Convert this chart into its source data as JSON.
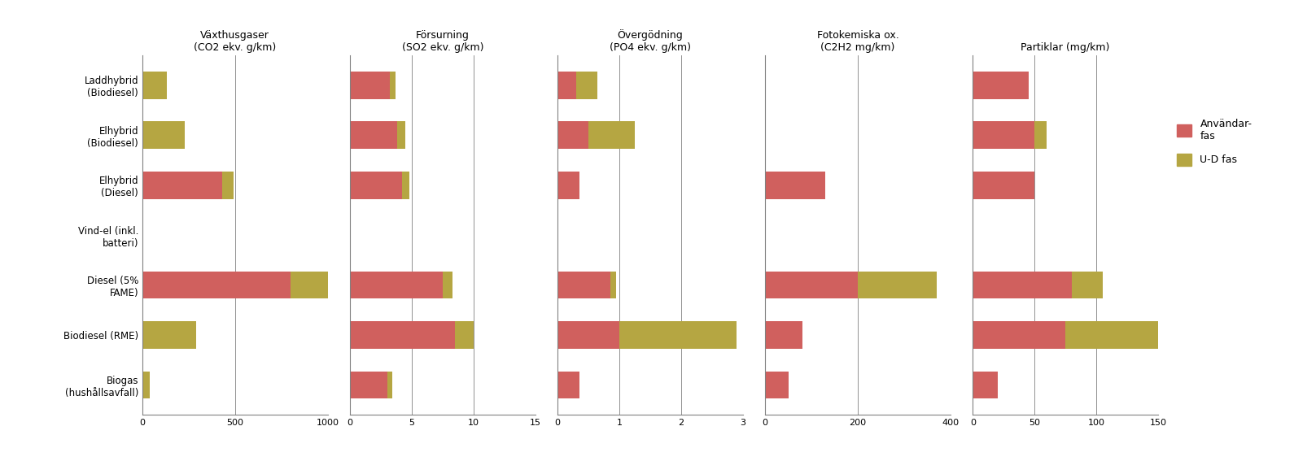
{
  "categories": [
    "Laddhybrid\n(Biodiesel)",
    "Elhybrid\n(Biodiesel)",
    "Elhybrid\n(Diesel)",
    "Vind-el (inkl.\nbatteri)",
    "Diesel (5%\nFAME)",
    "Biodiesel (RME)",
    "Biogas\n(hushållsavfall)"
  ],
  "subplots": [
    {
      "title": "Växthusgaser\n(CO2 ekv. g/km)",
      "xlim": [
        0,
        1000
      ],
      "xticks": [
        0,
        500,
        1000
      ],
      "user_values": [
        0,
        0,
        430,
        0,
        800,
        0,
        0
      ],
      "ud_values": [
        130,
        230,
        60,
        0,
        200,
        290,
        40
      ]
    },
    {
      "title": "Försurning\n(SO2 ekv. g/km)",
      "xlim": [
        0,
        15
      ],
      "xticks": [
        0,
        5,
        10,
        15
      ],
      "user_values": [
        3.2,
        3.8,
        4.2,
        0,
        7.5,
        8.5,
        3.0
      ],
      "ud_values": [
        0.5,
        0.7,
        0.6,
        0,
        0.8,
        1.5,
        0.4
      ]
    },
    {
      "title": "Övergödning\n(PO4 ekv. g/km)",
      "xlim": [
        0,
        3
      ],
      "xticks": [
        0,
        1,
        2,
        3
      ],
      "user_values": [
        0.3,
        0.5,
        0.35,
        0,
        0.85,
        1.0,
        0.35
      ],
      "ud_values": [
        0.35,
        0.75,
        0.0,
        0,
        0.1,
        1.9,
        0.0
      ]
    },
    {
      "title": "Fotokemiska ox.\n(C2H2 mg/km)",
      "xlim": [
        0,
        400
      ],
      "xticks": [
        0,
        200,
        400
      ],
      "user_values": [
        0,
        0,
        130,
        0,
        200,
        80,
        50
      ],
      "ud_values": [
        0,
        0,
        0,
        0,
        170,
        0,
        0
      ]
    },
    {
      "title": "Partiklar (mg/km)",
      "xlim": [
        0,
        150
      ],
      "xticks": [
        0,
        50,
        100,
        150
      ],
      "user_values": [
        45,
        50,
        50,
        0,
        80,
        75,
        20
      ],
      "ud_values": [
        0,
        10,
        0,
        0,
        25,
        75,
        0
      ]
    }
  ],
  "color_user": "#d0605e",
  "color_ud": "#b5a642",
  "legend_user": "Användar-\nfas",
  "legend_ud": "U-D fas",
  "bar_height": 0.55,
  "label_fontsize": 9,
  "title_fontsize": 9,
  "tick_fontsize": 8,
  "category_fontsize": 8.5
}
